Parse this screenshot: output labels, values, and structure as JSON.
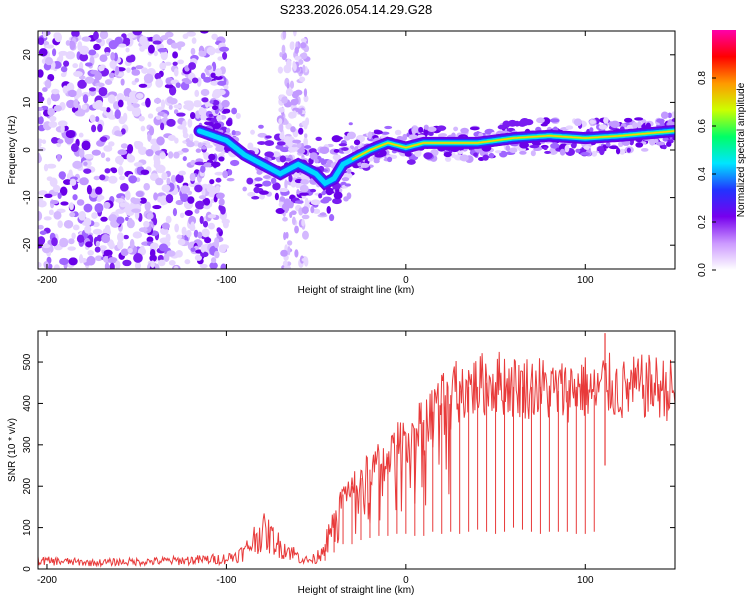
{
  "figure_title": "S233.2026.054.14.29.G28",
  "chart_data": [
    {
      "type": "heatmap",
      "title": "S233.2026.054.14.29.G28",
      "xlabel": "Height of straight line (km)",
      "ylabel": "Frequency (Hz)",
      "xlim": [
        -205,
        150
      ],
      "ylim": [
        -25,
        25
      ],
      "x_ticks": [
        -200,
        -100,
        0,
        100
      ],
      "y_ticks": [
        -20,
        -10,
        0,
        10,
        20
      ],
      "colorbar": {
        "label": "Normalized spectral amplitude",
        "range": [
          0,
          1
        ],
        "ticks": [
          "0.0",
          "0.2",
          "0.4",
          "0.6",
          "0.8"
        ],
        "colors": [
          "#ffffff",
          "#cc99ff",
          "#7700ee",
          "#2233ff",
          "#00e5ff",
          "#00ff66",
          "#ccff00",
          "#ff9900",
          "#ff0000",
          "#ff00aa"
        ]
      },
      "ridge": {
        "x": [
          -115,
          -100,
          -90,
          -80,
          -70,
          -60,
          -50,
          -45,
          -40,
          -35,
          -30,
          -20,
          -10,
          0,
          10,
          20,
          40,
          60,
          80,
          100,
          120,
          150
        ],
        "frequency": [
          4,
          2,
          -1,
          -3,
          -5,
          -3,
          -5,
          -7,
          -6,
          -3,
          -2,
          0,
          1.5,
          0.5,
          1.5,
          1.5,
          1.5,
          2.5,
          3,
          2.5,
          3,
          4
        ]
      }
    },
    {
      "type": "line",
      "xlabel": "Height of straight line (km)",
      "ylabel": "SNR (10 * v/v)",
      "xlim": [
        -205,
        150
      ],
      "ylim": [
        0,
        575
      ],
      "x_ticks": [
        -200,
        -100,
        0,
        100
      ],
      "y_ticks": [
        0,
        100,
        200,
        300,
        400,
        500
      ],
      "color": "#e83a3a",
      "series": [
        {
          "name": "SNR",
          "x": [
            -205,
            -190,
            -175,
            -160,
            -145,
            -130,
            -115,
            -100,
            -90,
            -85,
            -80,
            -75,
            -70,
            -65,
            -60,
            -55,
            -50,
            -45,
            -40,
            -35,
            -30,
            -25,
            -20,
            -15,
            -10,
            -5,
            0,
            5,
            10,
            15,
            20,
            25,
            30,
            35,
            40,
            45,
            50,
            55,
            60,
            65,
            70,
            75,
            80,
            85,
            90,
            95,
            100,
            105,
            110,
            115,
            120,
            130,
            140,
            150
          ],
          "values": [
            20,
            18,
            15,
            17,
            18,
            20,
            22,
            25,
            40,
            70,
            90,
            75,
            55,
            45,
            30,
            20,
            25,
            60,
            120,
            180,
            200,
            220,
            240,
            260,
            270,
            300,
            320,
            340,
            360,
            380,
            400,
            420,
            430,
            440,
            440,
            450,
            450,
            450,
            440,
            440,
            440,
            440,
            430,
            430,
            430,
            440,
            440,
            420,
            450,
            440,
            430,
            440,
            440,
            430
          ]
        }
      ],
      "dropouts": [
        {
          "x": -45,
          "low": 20
        },
        {
          "x": -40,
          "low": 40
        },
        {
          "x": -35,
          "low": 60
        },
        {
          "x": -30,
          "low": 60
        },
        {
          "x": -25,
          "low": 70
        },
        {
          "x": -20,
          "low": 75
        },
        {
          "x": -15,
          "low": 80
        },
        {
          "x": -10,
          "low": 80
        },
        {
          "x": -5,
          "low": 85
        },
        {
          "x": 0,
          "low": 85
        },
        {
          "x": 5,
          "low": 80
        },
        {
          "x": 10,
          "low": 80
        },
        {
          "x": 15,
          "low": 90
        },
        {
          "x": 20,
          "low": 85
        },
        {
          "x": 25,
          "low": 90
        },
        {
          "x": 30,
          "low": 85
        },
        {
          "x": 35,
          "low": 90
        },
        {
          "x": 40,
          "low": 95
        },
        {
          "x": 45,
          "low": 90
        },
        {
          "x": 50,
          "low": 85
        },
        {
          "x": 55,
          "low": 90
        },
        {
          "x": 60,
          "low": 100
        },
        {
          "x": 65,
          "low": 95
        },
        {
          "x": 70,
          "low": 90
        },
        {
          "x": 75,
          "low": 85
        },
        {
          "x": 80,
          "low": 90
        },
        {
          "x": 85,
          "low": 90
        },
        {
          "x": 90,
          "low": 90
        },
        {
          "x": 95,
          "low": 85
        },
        {
          "x": 100,
          "low": 85
        },
        {
          "x": 105,
          "low": 90
        }
      ],
      "spike": {
        "x": 111,
        "value": 570,
        "low": 250
      }
    }
  ]
}
